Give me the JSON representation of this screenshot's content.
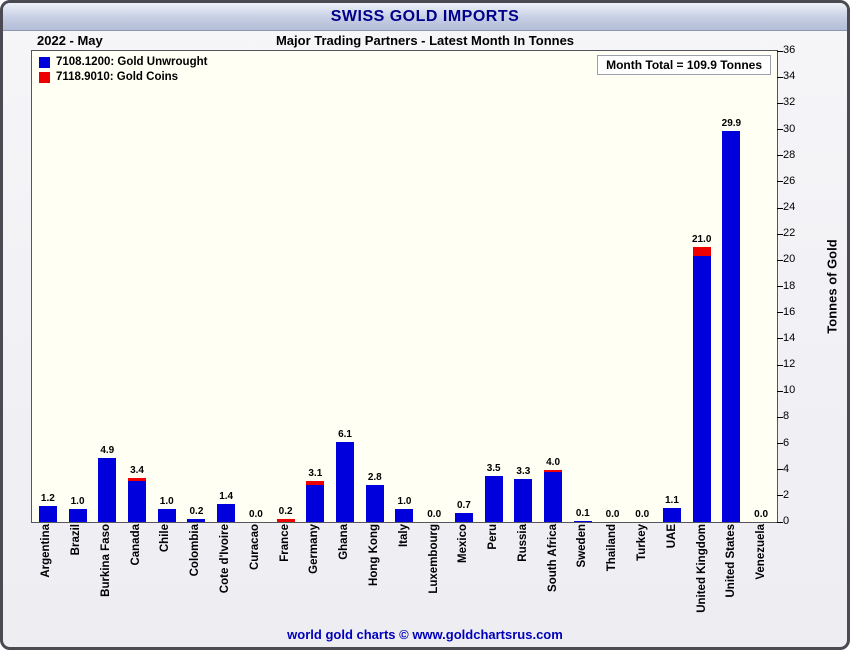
{
  "header": {
    "title": "SWISS GOLD IMPORTS",
    "date": "2022 - May",
    "subtitle": "Major Trading Partners - Latest Month In Tonnes"
  },
  "legend": [
    {
      "label": "7108.1200: Gold Unwrought",
      "color": "#0000dd"
    },
    {
      "label": "7118.9010: Gold Coins",
      "color": "#ee0000"
    }
  ],
  "month_total": "Month Total = 109.9 Tonnes",
  "chart_data": {
    "type": "bar",
    "stacked": true,
    "title": "SWISS GOLD IMPORTS",
    "subtitle": "Major Trading Partners - Latest Month In Tonnes",
    "categories": [
      "Argentina",
      "Brazil",
      "Burkina Faso",
      "Canada",
      "Chile",
      "Colombia",
      "Cote d'Ivoire",
      "Curacao",
      "France",
      "Germany",
      "Ghana",
      "Hong Kong",
      "Italy",
      "Luxembourg",
      "Mexico",
      "Peru",
      "Russia",
      "South Africa",
      "Sweden",
      "Thailand",
      "Turkey",
      "UAE",
      "United Kingdom",
      "United States",
      "Venezuela"
    ],
    "series": [
      {
        "name": "7108.1200: Gold Unwrought",
        "color": "#0000dd",
        "values": [
          1.2,
          1.0,
          4.9,
          3.1,
          1.0,
          0.2,
          1.4,
          0.0,
          0.0,
          2.8,
          6.1,
          2.8,
          1.0,
          0.0,
          0.7,
          3.5,
          3.3,
          3.8,
          0.1,
          0.0,
          0.0,
          1.1,
          20.3,
          29.9,
          0.0
        ]
      },
      {
        "name": "7118.9010: Gold Coins",
        "color": "#ee0000",
        "values": [
          0.0,
          0.0,
          0.0,
          0.3,
          0.0,
          0.0,
          0.0,
          0.0,
          0.2,
          0.3,
          0.0,
          0.0,
          0.0,
          0.0,
          0.0,
          0.0,
          0.0,
          0.2,
          0.0,
          0.0,
          0.0,
          0.0,
          0.7,
          0.0,
          0.0
        ]
      }
    ],
    "totals": [
      1.2,
      1.0,
      4.9,
      3.4,
      1.0,
      0.2,
      1.4,
      0.0,
      0.2,
      3.1,
      6.1,
      2.8,
      1.0,
      0.0,
      0.7,
      3.5,
      3.3,
      4.0,
      0.1,
      0.0,
      0.0,
      1.1,
      21.0,
      29.9,
      0.0
    ],
    "bar_labels": [
      "1.2",
      "1.0",
      "4.9",
      "3.4",
      "1.0",
      "0.2",
      "1.4",
      "0.0",
      "0.2",
      "3.1",
      "6.1",
      "2.8",
      "1.0",
      "0.0",
      "0.7",
      "3.5",
      "3.3",
      "4.0",
      "0.1",
      "0.0",
      "0.0",
      "1.1",
      "21.0",
      "29.9",
      "0.0"
    ],
    "xlabel": "",
    "ylabel": "Tonnes of Gold",
    "ylim": [
      0,
      36
    ],
    "ytick_step": 2,
    "grid": false,
    "legend_position": "upper-left"
  },
  "footer": "world gold charts © www.goldchartsrus.com"
}
